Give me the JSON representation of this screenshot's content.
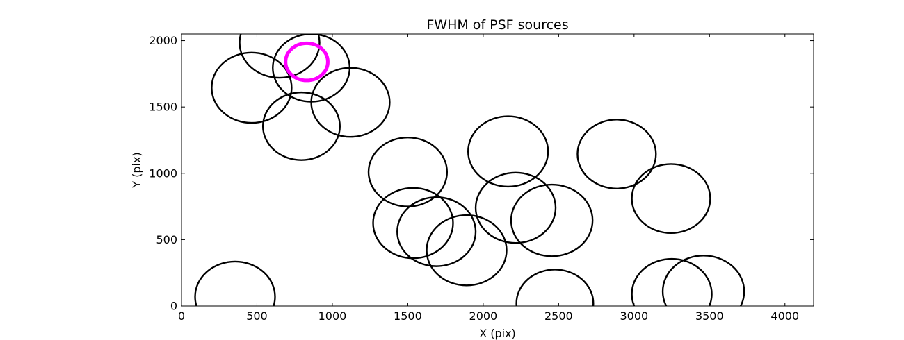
{
  "chart_data": {
    "type": "scatter",
    "title": "FWHM of PSF sources",
    "xlabel": "X (pix)",
    "ylabel": "Y (pix)",
    "xlim": [
      0,
      4190
    ],
    "ylim": [
      0,
      2050
    ],
    "xticks": [
      0,
      500,
      1000,
      1500,
      2000,
      2500,
      3000,
      3500,
      4000
    ],
    "yticks": [
      0,
      500,
      1000,
      1500,
      2000
    ],
    "grid": false,
    "colors": {
      "circle": "#000000",
      "highlight": "#ff00ff"
    },
    "sources": [
      {
        "x": 650,
        "y": 1985,
        "r": 265
      },
      {
        "x": 465,
        "y": 1645,
        "r": 265
      },
      {
        "x": 860,
        "y": 1795,
        "r": 255
      },
      {
        "x": 1120,
        "y": 1535,
        "r": 260
      },
      {
        "x": 795,
        "y": 1355,
        "r": 255
      },
      {
        "x": 355,
        "y": 70,
        "r": 265
      },
      {
        "x": 1500,
        "y": 1010,
        "r": 260
      },
      {
        "x": 1535,
        "y": 625,
        "r": 265
      },
      {
        "x": 1690,
        "y": 560,
        "r": 260
      },
      {
        "x": 1890,
        "y": 420,
        "r": 265
      },
      {
        "x": 2165,
        "y": 1165,
        "r": 265
      },
      {
        "x": 2215,
        "y": 740,
        "r": 265
      },
      {
        "x": 2455,
        "y": 645,
        "r": 270
      },
      {
        "x": 2475,
        "y": 20,
        "r": 255
      },
      {
        "x": 2885,
        "y": 1145,
        "r": 260
      },
      {
        "x": 3245,
        "y": 810,
        "r": 260
      },
      {
        "x": 3250,
        "y": 90,
        "r": 265
      },
      {
        "x": 3460,
        "y": 110,
        "r": 270
      }
    ],
    "highlight": {
      "x": 830,
      "y": 1840,
      "r": 140
    }
  }
}
